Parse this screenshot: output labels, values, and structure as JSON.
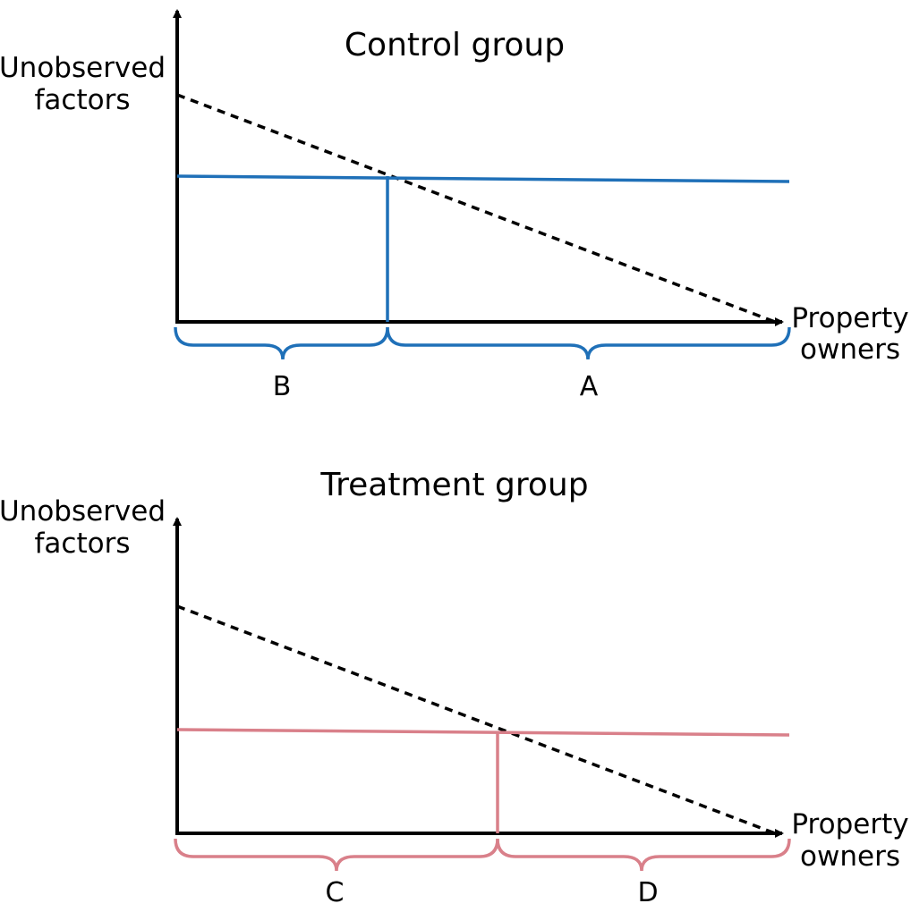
{
  "panels": [
    {
      "title": "Control group",
      "y_label": [
        "Unobserved",
        "factors"
      ],
      "x_label": [
        "Property",
        "owners"
      ],
      "left_segment": "B",
      "right_segment": "A",
      "color": "#1f70b8"
    },
    {
      "title": "Treatment group",
      "y_label": [
        "Unobserved",
        "factors"
      ],
      "x_label": [
        "Property",
        "owners"
      ],
      "left_segment": "C",
      "right_segment": "D",
      "color": "#d9808a"
    }
  ]
}
